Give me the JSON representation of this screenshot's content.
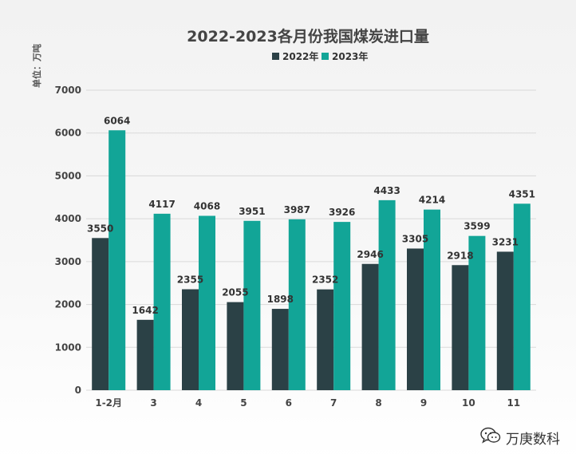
{
  "chart_data": {
    "type": "bar",
    "title": "2022-2023各月份我国煤炭进口量",
    "ylabel": "单位：万吨",
    "xlabel": "",
    "categories": [
      "1-2月",
      "3",
      "4",
      "5",
      "6",
      "7",
      "8",
      "9",
      "10",
      "11"
    ],
    "series": [
      {
        "name": "2022年",
        "color": "#2b4146",
        "values": [
          3550,
          1642,
          2355,
          2055,
          1898,
          2352,
          2946,
          3305,
          2918,
          3231
        ]
      },
      {
        "name": "2023年",
        "color": "#12a597",
        "values": [
          6064,
          4117,
          4068,
          3951,
          3987,
          3926,
          4433,
          4214,
          3599,
          4351
        ]
      }
    ],
    "ylim": [
      0,
      7000
    ],
    "yticks": [
      0,
      1000,
      2000,
      3000,
      4000,
      5000,
      6000,
      7000
    ],
    "grid": true,
    "legend": "top-center"
  },
  "watermark": {
    "text": "万庚数科",
    "icon": "wechat-icon"
  }
}
